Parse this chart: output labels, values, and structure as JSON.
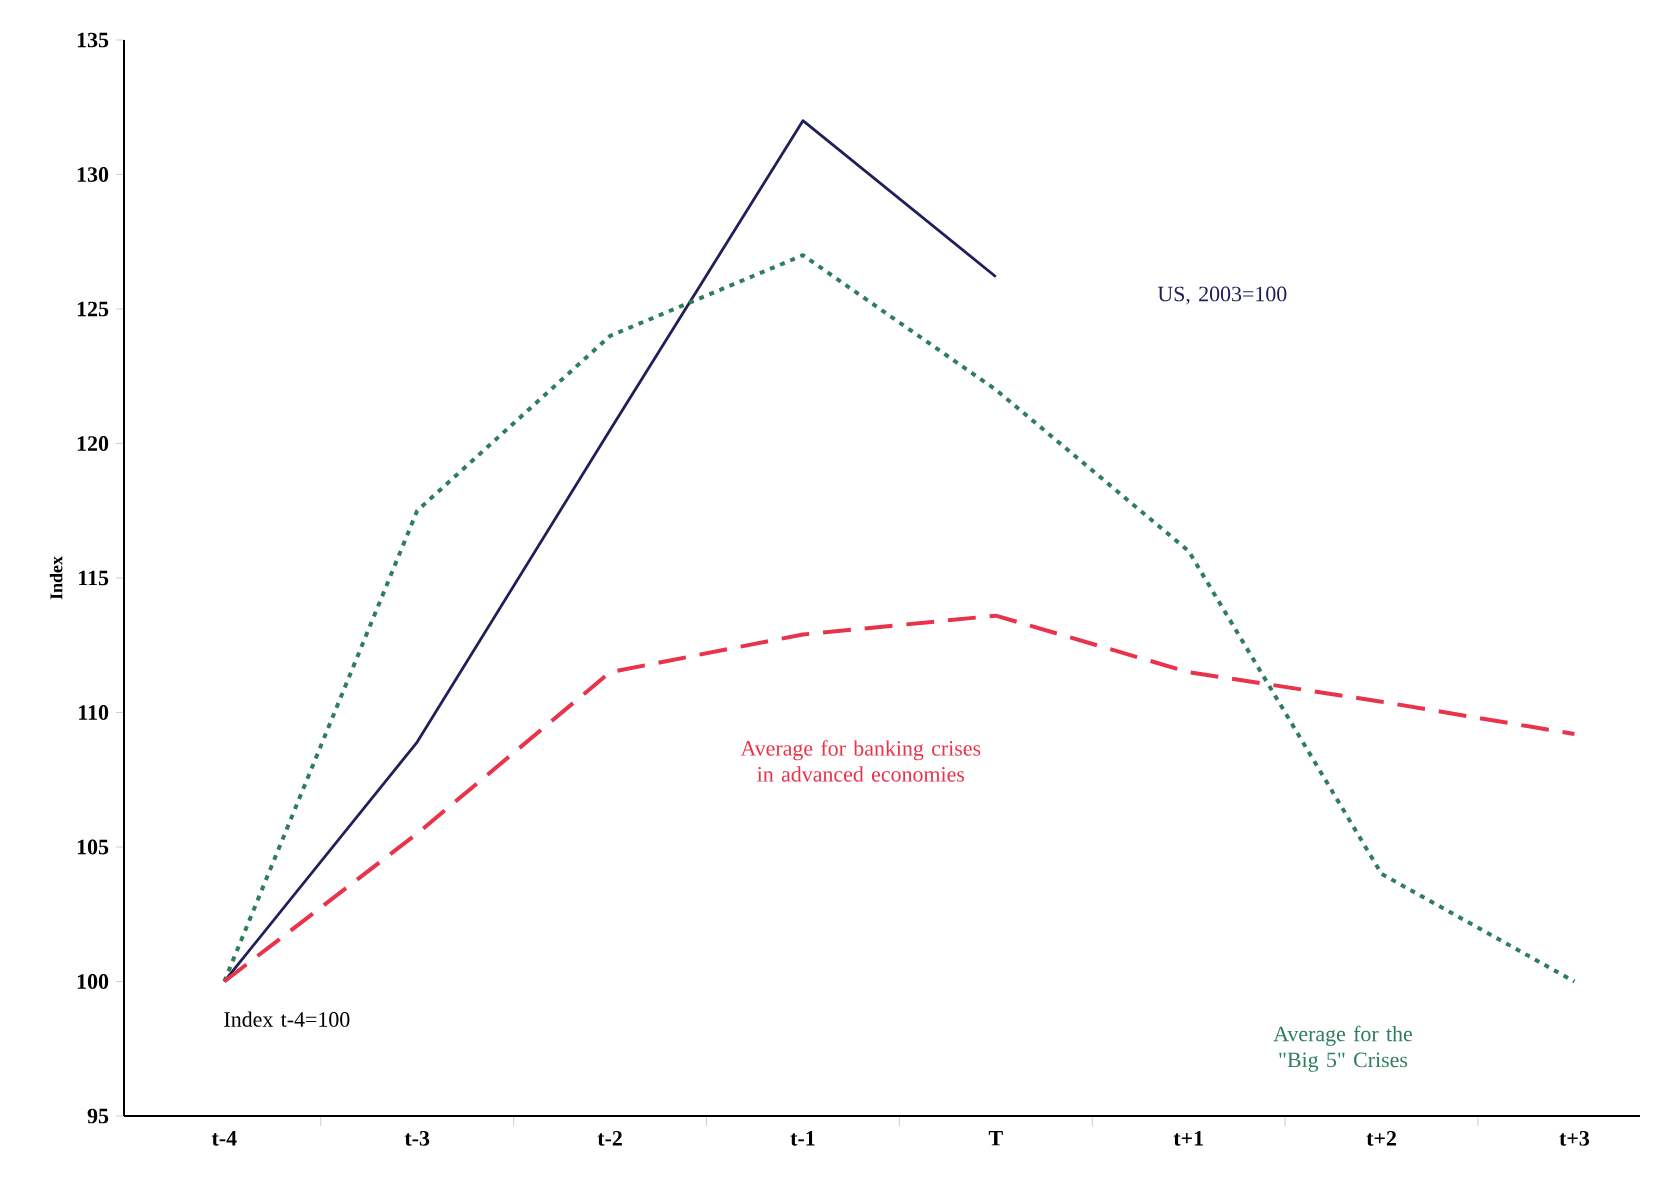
{
  "chart_data": {
    "type": "line",
    "ylabel": "Index",
    "categories": [
      "t-4",
      "t-3",
      "t-2",
      "t-1",
      "T",
      "t+1",
      "t+2",
      "t+3"
    ],
    "series": [
      {
        "color": "#1f1f5a",
        "line_style": "solid",
        "values": [
          100,
          108.9,
          120.5,
          132,
          126.2,
          null,
          null,
          null
        ]
      },
      {
        "color": "#2e7d5b",
        "line_style": "dotted",
        "values": [
          100,
          117.5,
          124,
          127,
          122,
          116,
          104,
          100
        ]
      },
      {
        "color": "#e8334a",
        "line_style": "dashed",
        "values": [
          100,
          105.5,
          111.5,
          112.9,
          113.6,
          111.5,
          110.4,
          109.2
        ]
      }
    ],
    "ylim": [
      95,
      135
    ],
    "yticks": [
      95,
      100,
      105,
      110,
      115,
      120,
      125,
      130,
      135
    ],
    "marker": "none",
    "annotations": [
      "US, 2003=100",
      "Average for banking crises in advanced economies",
      "Average for the \"Big 5\" Crises",
      "Index t-4=100"
    ]
  }
}
